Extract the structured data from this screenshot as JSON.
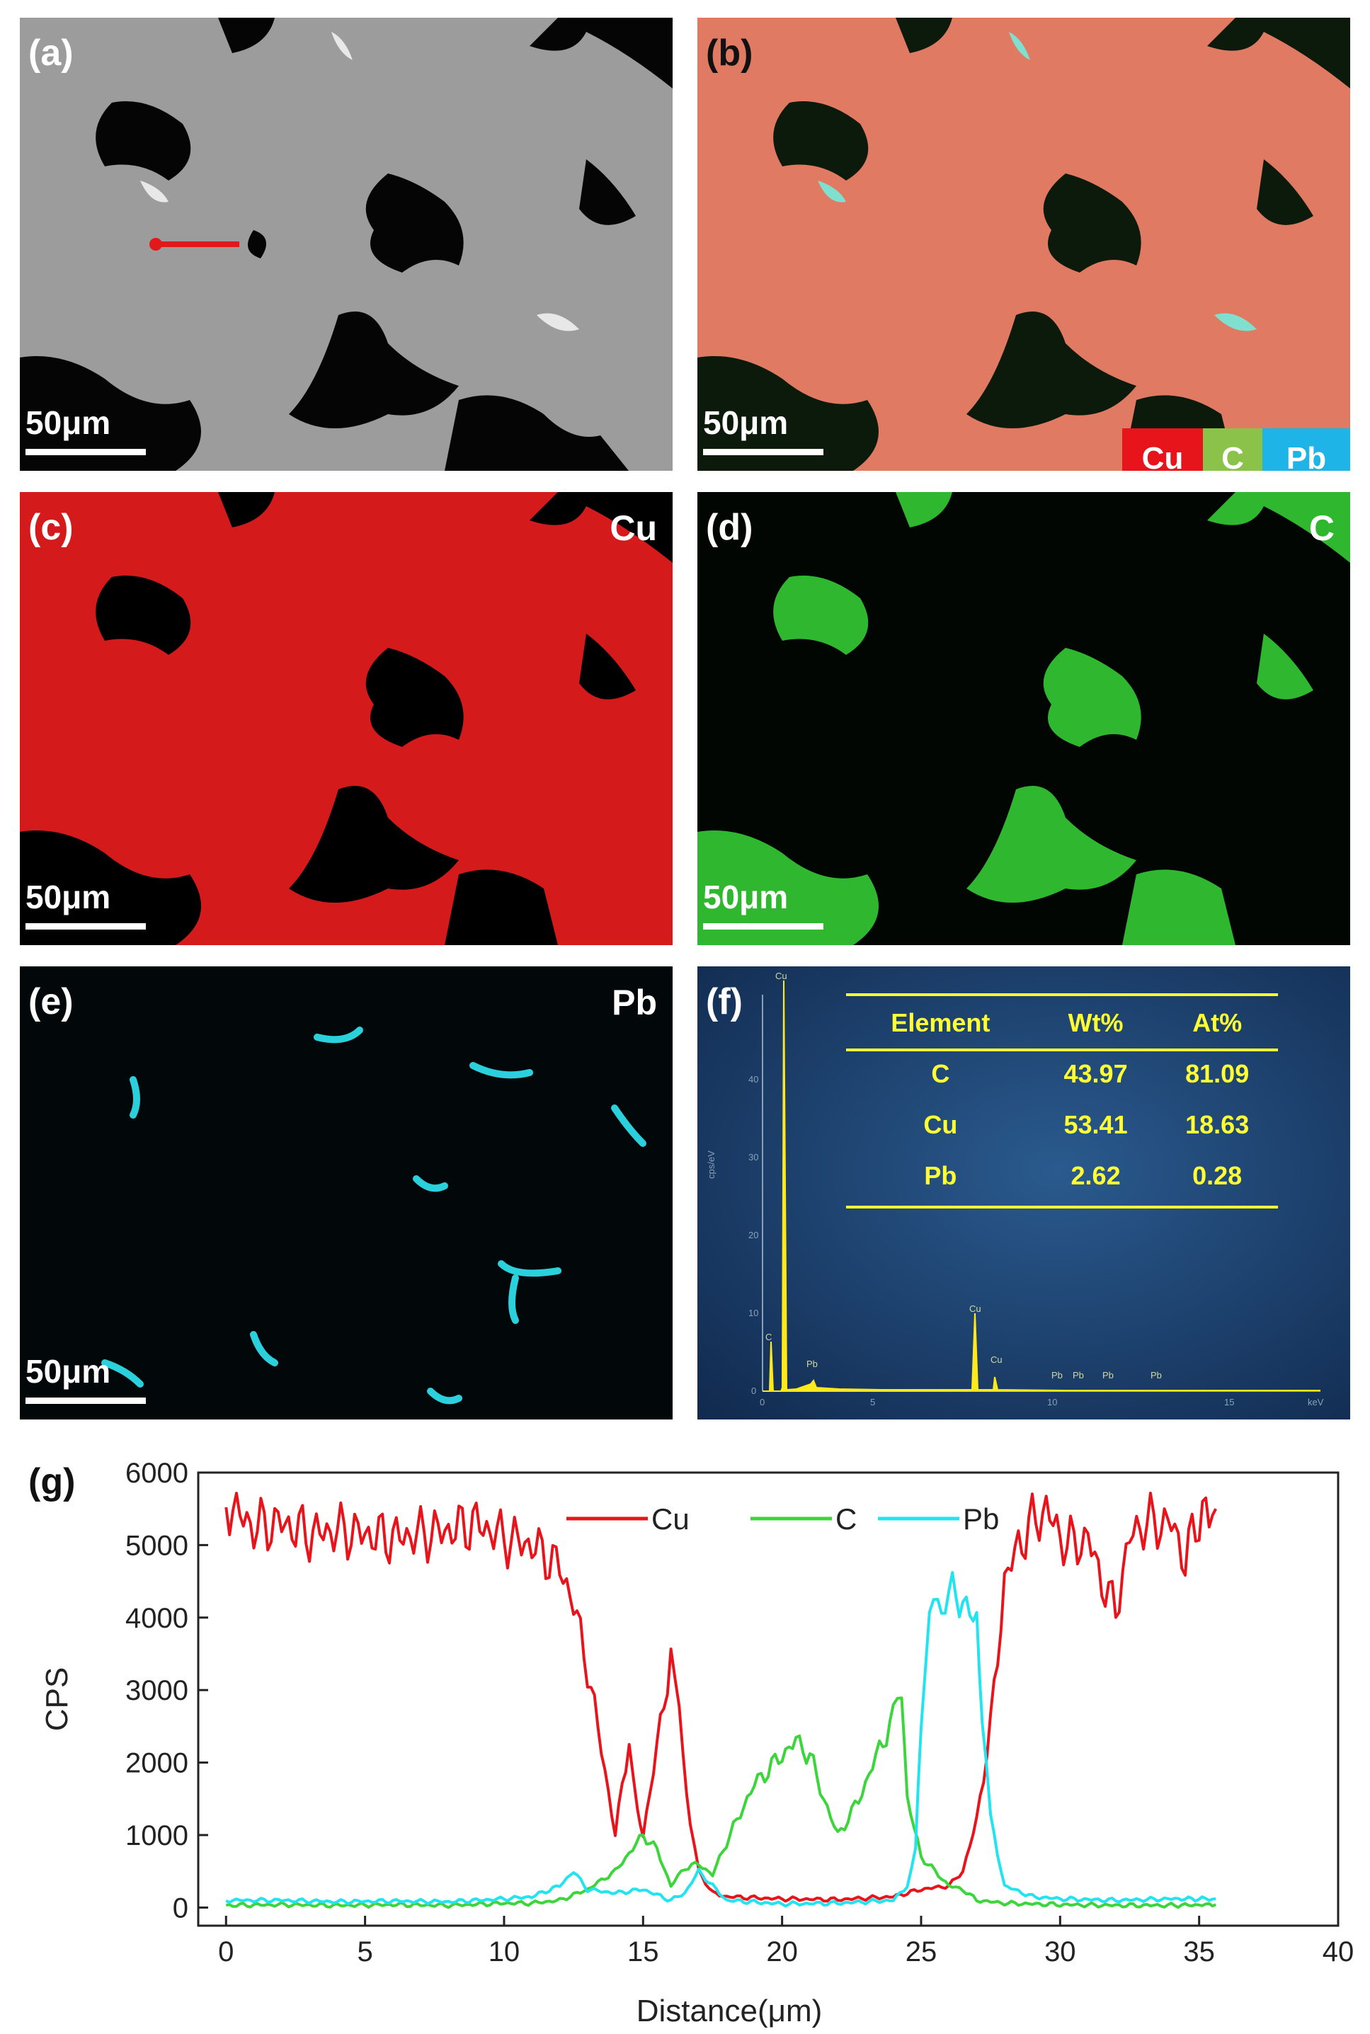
{
  "panels": {
    "a": {
      "label": "(a)",
      "scale": "50μm"
    },
    "b": {
      "label": "(b)",
      "scale": "50μm",
      "legend": [
        {
          "name": "Cu",
          "color": "#e8141c"
        },
        {
          "name": "C",
          "color": "#8bc34a"
        },
        {
          "name": "Pb",
          "color": "#1eb4e8"
        }
      ]
    },
    "c": {
      "label": "(c)",
      "element": "Cu",
      "scale": "50μm",
      "color": "#e01818"
    },
    "d": {
      "label": "(d)",
      "element": "C",
      "scale": "50μm",
      "color": "#3cd63c"
    },
    "e": {
      "label": "(e)",
      "element": "Pb",
      "scale": "50μm",
      "color": "#2ad0dc"
    },
    "f": {
      "label": "(f)"
    }
  },
  "spectrum": {
    "table": {
      "headers": [
        "Element",
        "Wt%",
        "At%"
      ],
      "rows": [
        {
          "element": "C",
          "wt": "43.97",
          "at": "81.09"
        },
        {
          "element": "Cu",
          "wt": "53.41",
          "at": "18.63"
        },
        {
          "element": "Pb",
          "wt": "2.62",
          "at": "0.28"
        }
      ]
    },
    "peak_labels": [
      "Cu",
      "C",
      "Pb",
      "Cu",
      "Cu",
      "Pb",
      "Pb",
      "Pb",
      "Pb"
    ],
    "y_ticks": [
      "0",
      "10",
      "20",
      "30",
      "40"
    ],
    "x_ticks": [
      "0",
      "5",
      "10",
      "15"
    ],
    "ylabel": "cps/eV",
    "xunit": "keV"
  },
  "chart_data": {
    "type": "line",
    "panel_label": "(g)",
    "xlabel": "Distance(μm)",
    "ylabel": "CPS",
    "xlim": [
      -1,
      40
    ],
    "ylim": [
      -250,
      6000
    ],
    "x_ticks": [
      0,
      5,
      10,
      15,
      20,
      25,
      30,
      35,
      40
    ],
    "y_ticks": [
      0,
      1000,
      2000,
      3000,
      4000,
      5000,
      6000
    ],
    "legend_position": "top-center",
    "series": [
      {
        "name": "Cu",
        "color": "#e8141c",
        "points": [
          [
            0,
            5600
          ],
          [
            0.5,
            5400
          ],
          [
            1,
            5250
          ],
          [
            2,
            5300
          ],
          [
            3,
            5150
          ],
          [
            4,
            5200
          ],
          [
            5,
            5150
          ],
          [
            6,
            5100
          ],
          [
            7,
            5150
          ],
          [
            8,
            5200
          ],
          [
            9,
            5300
          ],
          [
            10,
            5100
          ],
          [
            11,
            5000
          ],
          [
            12,
            4700
          ],
          [
            12.5,
            4200
          ],
          [
            13,
            3300
          ],
          [
            13.5,
            2200
          ],
          [
            14,
            1000
          ],
          [
            14.5,
            2350
          ],
          [
            14.8,
            1300
          ],
          [
            15,
            1000
          ],
          [
            15.5,
            2200
          ],
          [
            16,
            3500
          ],
          [
            16.3,
            2700
          ],
          [
            16.7,
            1200
          ],
          [
            17,
            500
          ],
          [
            17.5,
            200
          ],
          [
            18,
            150
          ],
          [
            20,
            120
          ],
          [
            22,
            110
          ],
          [
            24,
            150
          ],
          [
            25,
            250
          ],
          [
            26,
            300
          ],
          [
            26.5,
            500
          ],
          [
            27,
            1200
          ],
          [
            27.5,
            2500
          ],
          [
            28,
            4500
          ],
          [
            28.5,
            5000
          ],
          [
            29,
            5300
          ],
          [
            29.5,
            5500
          ],
          [
            30,
            5100
          ],
          [
            30.5,
            5000
          ],
          [
            31,
            5100
          ],
          [
            31.5,
            4500
          ],
          [
            32,
            4100
          ],
          [
            32.5,
            5100
          ],
          [
            33,
            5300
          ],
          [
            34,
            5300
          ],
          [
            34.5,
            4800
          ],
          [
            35,
            5400
          ],
          [
            35.6,
            5500
          ]
        ]
      },
      {
        "name": "C",
        "color": "#3cd63c",
        "points": [
          [
            0,
            30
          ],
          [
            2,
            40
          ],
          [
            4,
            30
          ],
          [
            6,
            40
          ],
          [
            8,
            30
          ],
          [
            10,
            60
          ],
          [
            11,
            60
          ],
          [
            12,
            100
          ],
          [
            13,
            250
          ],
          [
            14,
            500
          ],
          [
            15,
            1000
          ],
          [
            15.5,
            800
          ],
          [
            16,
            300
          ],
          [
            16.5,
            550
          ],
          [
            17,
            600
          ],
          [
            17.5,
            450
          ],
          [
            18,
            900
          ],
          [
            18.5,
            1300
          ],
          [
            19,
            1700
          ],
          [
            19.5,
            1900
          ],
          [
            20,
            2100
          ],
          [
            20.5,
            2300
          ],
          [
            21,
            2100
          ],
          [
            21.5,
            1500
          ],
          [
            22,
            1000
          ],
          [
            22.5,
            1300
          ],
          [
            23,
            1700
          ],
          [
            23.5,
            2200
          ],
          [
            24,
            2600
          ],
          [
            24.3,
            3000
          ],
          [
            24.5,
            1500
          ],
          [
            25,
            700
          ],
          [
            25.5,
            500
          ],
          [
            26,
            300
          ],
          [
            26.5,
            250
          ],
          [
            27,
            100
          ],
          [
            28,
            60
          ],
          [
            30,
            40
          ],
          [
            32,
            30
          ],
          [
            34,
            30
          ],
          [
            35.6,
            40
          ]
        ]
      },
      {
        "name": "Pb",
        "color": "#22e3f0",
        "points": [
          [
            0,
            100
          ],
          [
            2,
            100
          ],
          [
            4,
            80
          ],
          [
            6,
            90
          ],
          [
            8,
            80
          ],
          [
            10,
            120
          ],
          [
            11,
            150
          ],
          [
            12,
            300
          ],
          [
            12.5,
            500
          ],
          [
            13,
            250
          ],
          [
            14,
            200
          ],
          [
            15,
            250
          ],
          [
            16,
            100
          ],
          [
            16.5,
            200
          ],
          [
            17,
            500
          ],
          [
            17.5,
            300
          ],
          [
            18,
            100
          ],
          [
            20,
            50
          ],
          [
            22,
            60
          ],
          [
            24,
            100
          ],
          [
            24.5,
            300
          ],
          [
            24.8,
            800
          ],
          [
            25,
            2600
          ],
          [
            25.3,
            3800
          ],
          [
            25.6,
            4200
          ],
          [
            26,
            4300
          ],
          [
            26.5,
            4250
          ],
          [
            27,
            3900
          ],
          [
            27.2,
            2600
          ],
          [
            27.5,
            1200
          ],
          [
            28,
            300
          ],
          [
            29,
            150
          ],
          [
            30,
            120
          ],
          [
            32,
            100
          ],
          [
            34,
            120
          ],
          [
            35.6,
            120
          ]
        ]
      }
    ]
  }
}
